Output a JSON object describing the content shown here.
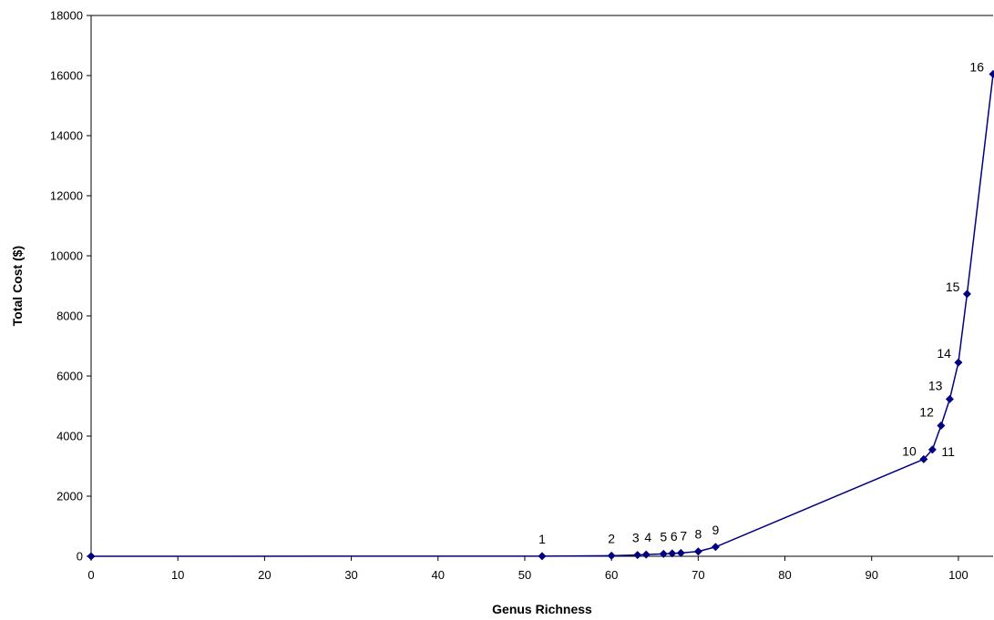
{
  "chart_data": {
    "type": "line",
    "title": "",
    "xlabel": "Genus Richness",
    "ylabel": "Total Cost ($)",
    "xlim": [
      0,
      104
    ],
    "ylim": [
      0,
      18000
    ],
    "x_ticks": [
      0,
      10,
      20,
      30,
      40,
      50,
      60,
      70,
      80,
      90,
      100
    ],
    "y_ticks": [
      0,
      2000,
      4000,
      6000,
      8000,
      10000,
      12000,
      14000,
      16000,
      18000
    ],
    "grid": false,
    "legend": "none",
    "series_color": "#000080",
    "points": [
      {
        "x": 0,
        "y": 0,
        "label": ""
      },
      {
        "x": 52,
        "y": 5,
        "label": "1"
      },
      {
        "x": 60,
        "y": 20,
        "label": "2"
      },
      {
        "x": 63,
        "y": 40,
        "label": "3"
      },
      {
        "x": 64,
        "y": 55,
        "label": "4"
      },
      {
        "x": 66,
        "y": 80,
        "label": "5"
      },
      {
        "x": 67,
        "y": 95,
        "label": "6"
      },
      {
        "x": 68,
        "y": 110,
        "label": "7"
      },
      {
        "x": 70,
        "y": 160,
        "label": "8"
      },
      {
        "x": 72,
        "y": 310,
        "label": "9"
      },
      {
        "x": 96,
        "y": 3230,
        "label": "10"
      },
      {
        "x": 97,
        "y": 3550,
        "label": "11"
      },
      {
        "x": 98,
        "y": 4350,
        "label": "12"
      },
      {
        "x": 99,
        "y": 5230,
        "label": "13"
      },
      {
        "x": 100,
        "y": 6450,
        "label": "14"
      },
      {
        "x": 101,
        "y": 8730,
        "label": "15"
      },
      {
        "x": 104,
        "y": 16050,
        "label": "16"
      }
    ]
  }
}
